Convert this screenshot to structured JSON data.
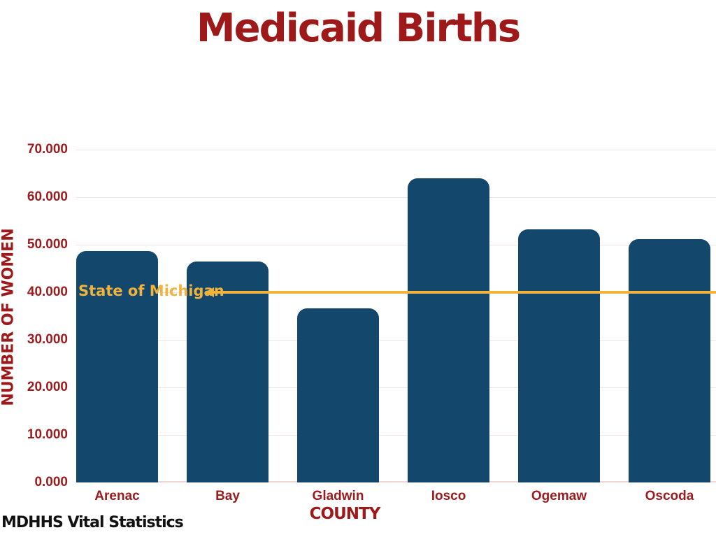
{
  "chart_data": {
    "type": "bar",
    "title": "Medicaid Births",
    "xlabel": "COUNTY",
    "ylabel": "NUMBER OF WOMEN",
    "categories": [
      "Arenac",
      "Bay",
      "Gladwin",
      "Iosco",
      "Ogemaw",
      "Oscoda"
    ],
    "values": [
      48700,
      46500,
      36600,
      64000,
      53200,
      51200
    ],
    "ylim": [
      0,
      70000
    ],
    "yticks": [
      {
        "value": 0,
        "label": "0.000"
      },
      {
        "value": 10000,
        "label": "10.000"
      },
      {
        "value": 20000,
        "label": "20.000"
      },
      {
        "value": 30000,
        "label": "30.000"
      },
      {
        "value": 40000,
        "label": "40.000"
      },
      {
        "value": 50000,
        "label": "50.000"
      },
      {
        "value": 60000,
        "label": "60.000"
      },
      {
        "value": 70000,
        "label": "70.000"
      }
    ],
    "grid": true,
    "legend_position": "none",
    "reference_line": {
      "label": "State of Michigan",
      "value": 40000
    },
    "source_note": "MDHHS Vital Statistics"
  },
  "colors": {
    "title_red": "#9E1A1A",
    "tick_red": "#9B1C1F",
    "bar_navy": "#13476C",
    "reference_gold": "#F2B33C",
    "gridline_pink": "#F5E2E2",
    "source_black": "#111111"
  }
}
